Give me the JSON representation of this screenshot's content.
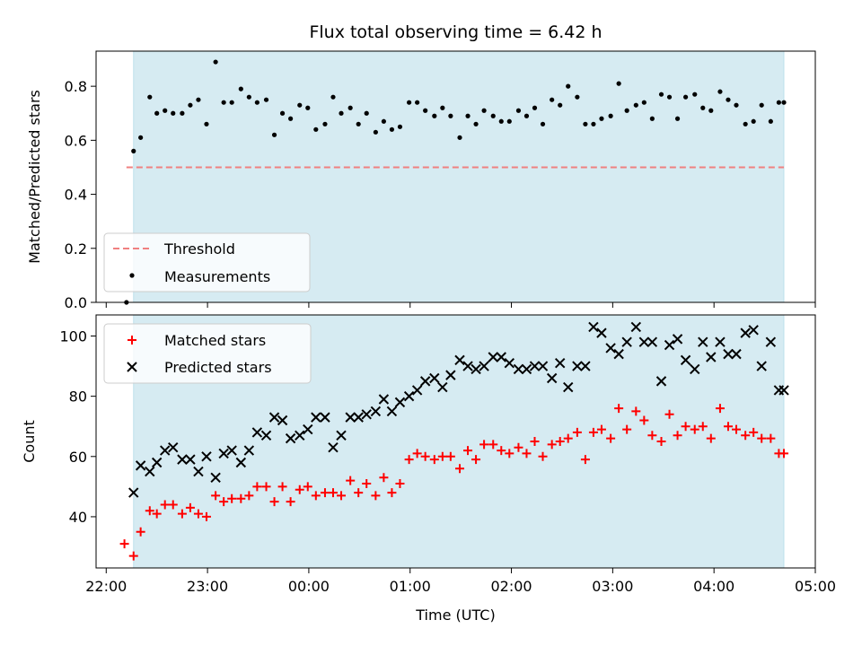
{
  "chart_data": [
    {
      "type": "scatter",
      "panel": "top",
      "title": "Flux total observing time = 6.42 h",
      "ylabel": "Matched/Predicted stars",
      "xlabel": "",
      "ylim": [
        0,
        0.93
      ],
      "yticks": [
        "0.0",
        "0.2",
        "0.4",
        "0.6",
        "0.8"
      ],
      "ytick_values": [
        0,
        0.2,
        0.4,
        0.6,
        0.8
      ],
      "observing_window_hours": [
        22.27,
        28.69
      ],
      "threshold": {
        "name": "Threshold",
        "value": 0.5,
        "x_range": [
          22.2,
          28.69
        ],
        "color": "#f08080"
      },
      "series": [
        {
          "name": "Measurements",
          "color": "#000000",
          "x": [
            22.2,
            22.27,
            22.34,
            22.43,
            22.5,
            22.58,
            22.66,
            22.75,
            22.83,
            22.91,
            22.99,
            23.08,
            23.16,
            23.24,
            23.33,
            23.41,
            23.49,
            23.58,
            23.66,
            23.74,
            23.82,
            23.91,
            23.99,
            24.07,
            24.16,
            24.24,
            24.32,
            24.41,
            24.49,
            24.57,
            24.66,
            24.74,
            24.82,
            24.9,
            24.99,
            25.07,
            25.15,
            25.24,
            25.32,
            25.4,
            25.49,
            25.57,
            25.65,
            25.73,
            25.82,
            25.9,
            25.98,
            26.07,
            26.15,
            26.23,
            26.31,
            26.4,
            26.48,
            26.56,
            26.65,
            26.73,
            26.81,
            26.89,
            26.98,
            27.06,
            27.14,
            27.23,
            27.31,
            27.39,
            27.48,
            27.56,
            27.64,
            27.72,
            27.81,
            27.89,
            27.97,
            28.06,
            28.14,
            28.22,
            28.31,
            28.39,
            28.47,
            28.56,
            28.64,
            28.69
          ],
          "values": [
            0.0,
            0.56,
            0.61,
            0.76,
            0.7,
            0.71,
            0.7,
            0.7,
            0.73,
            0.75,
            0.66,
            0.89,
            0.74,
            0.74,
            0.79,
            0.76,
            0.74,
            0.75,
            0.62,
            0.7,
            0.68,
            0.73,
            0.72,
            0.64,
            0.66,
            0.76,
            0.7,
            0.72,
            0.66,
            0.7,
            0.63,
            0.67,
            0.64,
            0.65,
            0.74,
            0.74,
            0.71,
            0.69,
            0.72,
            0.69,
            0.61,
            0.69,
            0.66,
            0.71,
            0.69,
            0.67,
            0.67,
            0.71,
            0.69,
            0.72,
            0.66,
            0.75,
            0.73,
            0.8,
            0.76,
            0.66,
            0.66,
            0.68,
            0.69,
            0.81,
            0.71,
            0.73,
            0.74,
            0.68,
            0.77,
            0.76,
            0.68,
            0.76,
            0.77,
            0.72,
            0.71,
            0.78,
            0.75,
            0.73,
            0.66,
            0.67,
            0.73,
            0.67,
            0.74,
            0.74
          ]
        }
      ],
      "legend": "lower-left"
    },
    {
      "type": "scatter",
      "panel": "bottom",
      "title": "",
      "ylabel": "Count",
      "xlabel": "Time (UTC)",
      "xlim_hours": [
        21.9,
        29.0
      ],
      "xticks": [
        "22:00",
        "23:00",
        "00:00",
        "01:00",
        "02:00",
        "03:00",
        "04:00",
        "05:00"
      ],
      "xtick_hours": [
        22,
        23,
        24,
        25,
        26,
        27,
        28,
        29
      ],
      "ylim": [
        23,
        107
      ],
      "yticks": [
        "40",
        "60",
        "80",
        "100"
      ],
      "ytick_values": [
        40,
        60,
        80,
        100
      ],
      "observing_window_hours": [
        22.27,
        28.69
      ],
      "series": [
        {
          "name": "Matched stars",
          "marker": "plus",
          "color": "#ff0000",
          "x": [
            22.18,
            22.27,
            22.34,
            22.43,
            22.5,
            22.58,
            22.66,
            22.75,
            22.83,
            22.91,
            22.99,
            23.08,
            23.16,
            23.24,
            23.33,
            23.41,
            23.49,
            23.58,
            23.66,
            23.74,
            23.82,
            23.91,
            23.99,
            24.07,
            24.16,
            24.24,
            24.32,
            24.41,
            24.49,
            24.57,
            24.66,
            24.74,
            24.82,
            24.9,
            24.99,
            25.07,
            25.15,
            25.24,
            25.32,
            25.4,
            25.49,
            25.57,
            25.65,
            25.73,
            25.82,
            25.9,
            25.98,
            26.07,
            26.15,
            26.23,
            26.31,
            26.4,
            26.48,
            26.56,
            26.65,
            26.73,
            26.81,
            26.89,
            26.98,
            27.06,
            27.14,
            27.23,
            27.31,
            27.39,
            27.48,
            27.56,
            27.64,
            27.72,
            27.81,
            27.89,
            27.97,
            28.06,
            28.14,
            28.22,
            28.31,
            28.39,
            28.47,
            28.56,
            28.64,
            28.69
          ],
          "values": [
            31,
            27,
            35,
            42,
            41,
            44,
            44,
            41,
            43,
            41,
            40,
            47,
            45,
            46,
            46,
            47,
            50,
            50,
            45,
            50,
            45,
            49,
            50,
            47,
            48,
            48,
            47,
            52,
            48,
            51,
            47,
            53,
            48,
            51,
            59,
            61,
            60,
            59,
            60,
            60,
            56,
            62,
            59,
            64,
            64,
            62,
            61,
            63,
            61,
            65,
            60,
            64,
            65,
            66,
            68,
            59,
            68,
            69,
            66,
            76,
            69,
            75,
            72,
            67,
            65,
            74,
            67,
            70,
            69,
            70,
            66,
            76,
            70,
            69,
            67,
            68,
            66,
            66,
            61,
            61
          ]
        },
        {
          "name": "Predicted stars",
          "marker": "x",
          "color": "#000000",
          "x": [
            22.27,
            22.34,
            22.43,
            22.5,
            22.58,
            22.66,
            22.75,
            22.83,
            22.91,
            22.99,
            23.08,
            23.16,
            23.24,
            23.33,
            23.41,
            23.49,
            23.58,
            23.66,
            23.74,
            23.82,
            23.91,
            23.99,
            24.07,
            24.16,
            24.24,
            24.32,
            24.41,
            24.49,
            24.57,
            24.66,
            24.74,
            24.82,
            24.9,
            24.99,
            25.07,
            25.15,
            25.24,
            25.32,
            25.4,
            25.49,
            25.57,
            25.65,
            25.73,
            25.82,
            25.9,
            25.98,
            26.07,
            26.15,
            26.23,
            26.31,
            26.4,
            26.48,
            26.56,
            26.65,
            26.73,
            26.81,
            26.89,
            26.98,
            27.06,
            27.14,
            27.23,
            27.31,
            27.39,
            27.48,
            27.56,
            27.64,
            27.72,
            27.81,
            27.89,
            27.97,
            28.06,
            28.14,
            28.22,
            28.31,
            28.39,
            28.47,
            28.56,
            28.64,
            28.69
          ],
          "values": [
            48,
            57,
            55,
            58,
            62,
            63,
            59,
            59,
            55,
            60,
            53,
            61,
            62,
            58,
            62,
            68,
            67,
            73,
            72,
            66,
            67,
            69,
            73,
            73,
            63,
            67,
            73,
            73,
            74,
            75,
            79,
            75,
            78,
            80,
            82,
            85,
            86,
            83,
            87,
            92,
            90,
            89,
            90,
            93,
            93,
            91,
            89,
            89,
            90,
            90,
            86,
            91,
            83,
            90,
            90,
            103,
            101,
            96,
            94,
            98,
            103,
            98,
            98,
            85,
            97,
            99,
            92,
            89,
            98,
            93,
            98,
            94,
            94,
            101,
            102,
            90,
            98,
            82,
            82
          ]
        }
      ],
      "legend": "upper-left"
    }
  ]
}
